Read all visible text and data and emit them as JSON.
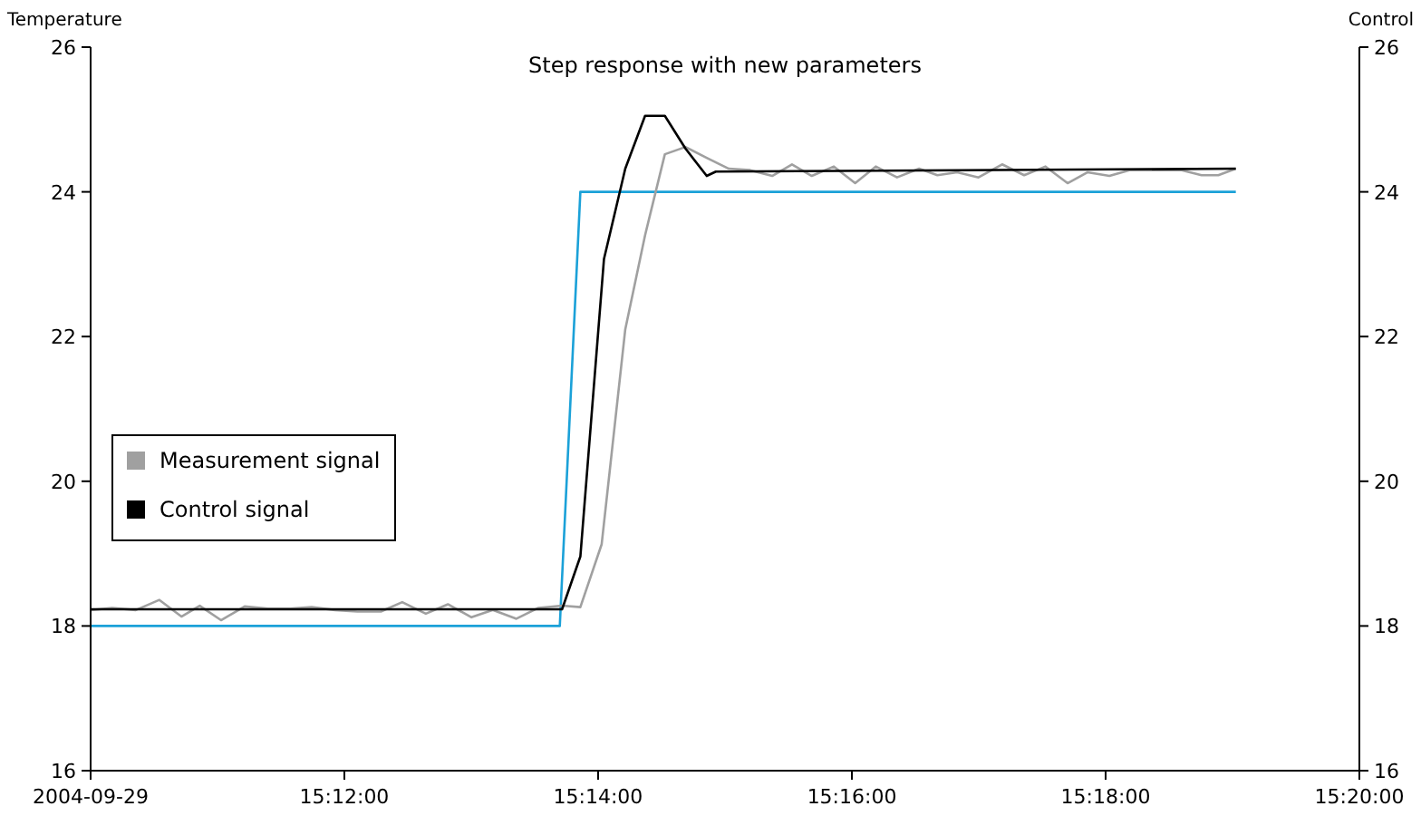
{
  "chart_data": {
    "type": "line",
    "title": "Step response with new parameters",
    "ylabel": "Temperature",
    "y2label": "Control",
    "xlim": [
      15.16667,
      15.33333
    ],
    "xticks": [
      {
        "value": 15.16667,
        "label": "2004-09-29"
      },
      {
        "value": 15.2,
        "label": "15:12:00"
      },
      {
        "value": 15.23333,
        "label": "15:14:00"
      },
      {
        "value": 15.26667,
        "label": "15:16:00"
      },
      {
        "value": 15.3,
        "label": "15:18:00"
      },
      {
        "value": 15.33333,
        "label": "15:20:00"
      }
    ],
    "ylim": [
      16,
      26
    ],
    "yticks": [
      16,
      18,
      20,
      22,
      24,
      26
    ],
    "y2lim": [
      16,
      26
    ],
    "y2ticks": [
      16,
      18,
      20,
      22,
      24,
      26
    ],
    "grid": false,
    "legend": "left",
    "marker": "none",
    "line_style": "solid",
    "series": [
      {
        "color": "#1ba1d8",
        "x": [
          15.16667,
          15.2283,
          15.231,
          15.3171
        ],
        "values": [
          18,
          18,
          24,
          24
        ]
      },
      {
        "name": "Measurement signal",
        "color": "#a0a0a0",
        "x": [
          15.1667,
          15.1695,
          15.1726,
          15.1757,
          15.1786,
          15.181,
          15.1838,
          15.1869,
          15.19,
          15.1929,
          15.1957,
          15.1988,
          15.2017,
          15.2048,
          15.2076,
          15.2107,
          15.2136,
          15.2167,
          15.2195,
          15.2226,
          15.2255,
          15.2286,
          15.231,
          15.2338,
          15.2369,
          15.2395,
          15.2421,
          15.2448,
          15.2476,
          15.2505,
          15.2533,
          15.2562,
          15.2588,
          15.2614,
          15.2643,
          15.2671,
          15.2698,
          15.2726,
          15.2755,
          15.2779,
          15.2805,
          15.2833,
          15.2864,
          15.2893,
          15.2921,
          15.295,
          15.2976,
          15.3005,
          15.3031,
          15.31,
          15.3126,
          15.3148,
          15.3171
        ],
        "values": [
          18.22,
          18.25,
          18.22,
          18.36,
          18.13,
          18.28,
          18.08,
          18.27,
          18.24,
          18.24,
          18.26,
          18.22,
          18.2,
          18.2,
          18.33,
          18.17,
          18.3,
          18.12,
          18.22,
          18.1,
          18.25,
          18.28,
          18.26,
          19.13,
          22.1,
          23.4,
          24.52,
          24.62,
          24.47,
          24.32,
          24.3,
          24.22,
          24.38,
          24.22,
          24.35,
          24.12,
          24.35,
          24.2,
          24.32,
          24.23,
          24.27,
          24.2,
          24.38,
          24.23,
          24.35,
          24.12,
          24.27,
          24.22,
          24.3,
          24.3,
          24.23,
          24.23,
          24.32
        ]
      },
      {
        "name": "Control signal",
        "color": "#000000",
        "x": [
          15.1667,
          15.2286,
          15.231,
          15.2341,
          15.2369,
          15.2395,
          15.2421,
          15.2448,
          15.2476,
          15.2488,
          15.3171
        ],
        "values": [
          18.23,
          18.23,
          18.96,
          23.07,
          24.32,
          25.05,
          25.05,
          24.6,
          24.22,
          24.28,
          24.32
        ]
      }
    ]
  }
}
